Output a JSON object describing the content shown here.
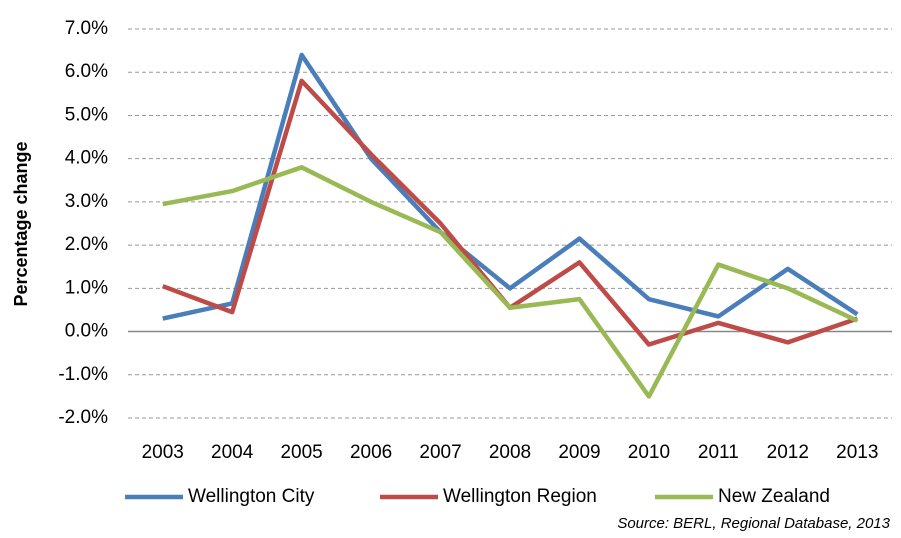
{
  "chart_data": {
    "type": "line",
    "y_label": "Percentage change",
    "source": "Source: BERL, Regional Database, 2013",
    "categories": [
      "2003",
      "2004",
      "2005",
      "2006",
      "2007",
      "2008",
      "2009",
      "2010",
      "2011",
      "2012",
      "2013"
    ],
    "series": [
      {
        "name": "Wellington City",
        "color": "#4a7ebb",
        "values": [
          0.3,
          0.65,
          6.4,
          4.0,
          2.3,
          1.0,
          2.15,
          0.75,
          0.35,
          1.45,
          0.4
        ]
      },
      {
        "name": "Wellington Region",
        "color": "#be4b48",
        "values": [
          1.05,
          0.45,
          5.8,
          4.1,
          2.5,
          0.55,
          1.6,
          -0.3,
          0.2,
          -0.25,
          0.3
        ]
      },
      {
        "name": "New Zealand",
        "color": "#98b954",
        "values": [
          2.95,
          3.25,
          3.8,
          3.0,
          2.3,
          0.55,
          0.75,
          -1.5,
          1.55,
          1.0,
          0.25
        ]
      }
    ],
    "ylim": [
      -2,
      7
    ],
    "yticks": [
      {
        "value": -2,
        "label": "-2.0%"
      },
      {
        "value": -1,
        "label": "-1.0%"
      },
      {
        "value": 0,
        "label": "0.0%"
      },
      {
        "value": 1,
        "label": "1.0%"
      },
      {
        "value": 2,
        "label": "2.0%"
      },
      {
        "value": 3,
        "label": "3.0%"
      },
      {
        "value": 4,
        "label": "4.0%"
      },
      {
        "value": 5,
        "label": "5.0%"
      },
      {
        "value": 6,
        "label": "6.0%"
      },
      {
        "value": 7,
        "label": "7.0%"
      }
    ],
    "grid": true,
    "legend": "bottom"
  }
}
